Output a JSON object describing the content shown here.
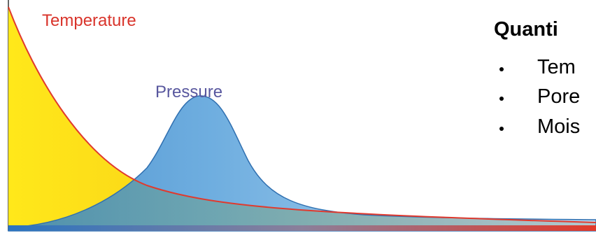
{
  "labels": {
    "temperature": "Temperature",
    "pressure": "Pressure"
  },
  "panel": {
    "heading": "Quanti",
    "bullets": [
      "Tem",
      "Pore",
      "Mois"
    ]
  }
}
